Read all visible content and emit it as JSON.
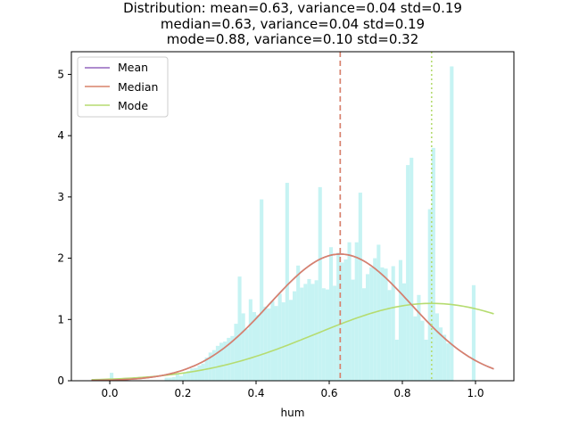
{
  "chart_data": {
    "type": "histogram",
    "title_lines": [
      "Distribution: mean=0.63, variance=0.04 std=0.19",
      "median=0.63, variance=0.04 std=0.19",
      "mode=0.88, variance=0.10 std=0.32"
    ],
    "xlabel": "hum",
    "ylabel": "",
    "xlim": [
      -0.105,
      1.105
    ],
    "ylim": [
      0,
      5.37
    ],
    "xticks": [
      0.0,
      0.2,
      0.4,
      0.6,
      0.8,
      1.0
    ],
    "xtick_labels": [
      "0.0",
      "0.2",
      "0.4",
      "0.6",
      "0.8",
      "1.0"
    ],
    "yticks": [
      0,
      1,
      2,
      3,
      4,
      5
    ],
    "ytick_labels": [
      "0",
      "1",
      "2",
      "3",
      "4",
      "5"
    ],
    "histogram": {
      "color": "#c6f3f3",
      "bin_width": 0.01,
      "bins": [
        [
          0.0,
          0.13
        ],
        [
          0.15,
          0.05
        ],
        [
          0.16,
          0.05
        ],
        [
          0.17,
          0.06
        ],
        [
          0.18,
          0.1
        ],
        [
          0.19,
          0.08
        ],
        [
          0.2,
          0.12
        ],
        [
          0.21,
          0.16
        ],
        [
          0.22,
          0.2
        ],
        [
          0.23,
          0.21
        ],
        [
          0.24,
          0.25
        ],
        [
          0.25,
          0.28
        ],
        [
          0.26,
          0.38
        ],
        [
          0.27,
          0.46
        ],
        [
          0.28,
          0.5
        ],
        [
          0.29,
          0.57
        ],
        [
          0.3,
          0.62
        ],
        [
          0.31,
          0.64
        ],
        [
          0.32,
          0.7
        ],
        [
          0.33,
          0.73
        ],
        [
          0.34,
          0.93
        ],
        [
          0.35,
          1.7
        ],
        [
          0.36,
          1.1
        ],
        [
          0.37,
          0.84
        ],
        [
          0.38,
          1.33
        ],
        [
          0.39,
          1.12
        ],
        [
          0.4,
          1.07
        ],
        [
          0.41,
          2.96
        ],
        [
          0.42,
          1.21
        ],
        [
          0.43,
          1.18
        ],
        [
          0.44,
          1.3
        ],
        [
          0.45,
          1.22
        ],
        [
          0.46,
          1.42
        ],
        [
          0.47,
          1.28
        ],
        [
          0.48,
          3.23
        ],
        [
          0.49,
          1.32
        ],
        [
          0.5,
          1.46
        ],
        [
          0.51,
          1.88
        ],
        [
          0.52,
          1.52
        ],
        [
          0.53,
          1.58
        ],
        [
          0.54,
          1.66
        ],
        [
          0.55,
          1.58
        ],
        [
          0.56,
          1.64
        ],
        [
          0.57,
          3.16
        ],
        [
          0.58,
          1.51
        ],
        [
          0.59,
          1.49
        ],
        [
          0.6,
          2.18
        ],
        [
          0.61,
          1.55
        ],
        [
          0.62,
          2.09
        ],
        [
          0.63,
          1.93
        ],
        [
          0.64,
          1.98
        ],
        [
          0.65,
          2.26
        ],
        [
          0.66,
          1.65
        ],
        [
          0.67,
          2.26
        ],
        [
          0.68,
          3.07
        ],
        [
          0.69,
          1.51
        ],
        [
          0.7,
          1.74
        ],
        [
          0.71,
          1.85
        ],
        [
          0.72,
          2.0
        ],
        [
          0.73,
          2.22
        ],
        [
          0.74,
          1.85
        ],
        [
          0.75,
          1.83
        ],
        [
          0.76,
          1.48
        ],
        [
          0.77,
          1.87
        ],
        [
          0.78,
          0.67
        ],
        [
          0.79,
          1.97
        ],
        [
          0.8,
          1.59
        ],
        [
          0.81,
          3.52
        ],
        [
          0.82,
          3.64
        ],
        [
          0.83,
          1.05
        ],
        [
          0.84,
          1.4
        ],
        [
          0.85,
          0.98
        ],
        [
          0.86,
          0.67
        ],
        [
          0.87,
          2.8
        ],
        [
          0.88,
          3.8
        ],
        [
          0.89,
          1.1
        ],
        [
          0.9,
          0.87
        ],
        [
          0.91,
          0.75
        ],
        [
          0.92,
          0.61
        ],
        [
          0.93,
          5.13
        ],
        [
          0.97,
          0.01
        ],
        [
          0.98,
          0.01
        ],
        [
          0.99,
          1.56
        ]
      ]
    },
    "series": [
      {
        "name": "Mean",
        "kind": "normal-pdf",
        "mu": 0.63,
        "sigma": 0.193,
        "color": "#9467bd",
        "linestyle": "solid",
        "vline_at": 0.63,
        "vline_style": "dashed"
      },
      {
        "name": "Median",
        "kind": "normal-pdf",
        "mu": 0.63,
        "sigma": 0.193,
        "color": "#d9826a",
        "linestyle": "solid",
        "vline_at": 0.63,
        "vline_style": "dashed"
      },
      {
        "name": "Mode",
        "kind": "normal-pdf",
        "mu": 0.88,
        "sigma": 0.316,
        "color": "#b5dc70",
        "linestyle": "solid",
        "vline_at": 0.88,
        "vline_style": "dotted"
      }
    ],
    "curve_range": [
      -0.05,
      1.05
    ],
    "legend_position": "top-left",
    "grid": false
  }
}
